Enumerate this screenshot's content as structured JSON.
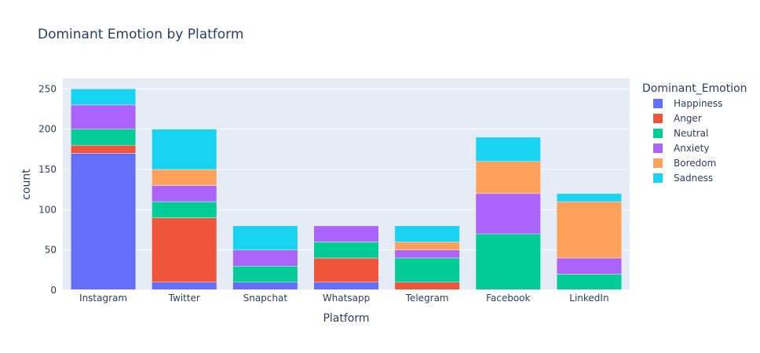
{
  "chart_data": {
    "type": "bar",
    "stacked": true,
    "title": "Dominant Emotion by Platform",
    "xlabel": "Platform",
    "ylabel": "count",
    "categories": [
      "Instagram",
      "Twitter",
      "Snapchat",
      "Whatsapp",
      "Telegram",
      "Facebook",
      "LinkedIn"
    ],
    "ylim": [
      0,
      263
    ],
    "yticks": [
      0,
      50,
      100,
      150,
      200,
      250
    ],
    "legend_title": "Dominant_Emotion",
    "legend_position": "right",
    "grid": true,
    "plot_background": "#e5ecf6",
    "series": [
      {
        "name": "Happiness",
        "color": "#636efa",
        "values": [
          170,
          10,
          10,
          10,
          0,
          0,
          0
        ]
      },
      {
        "name": "Anger",
        "color": "#ef553b",
        "values": [
          10,
          80,
          0,
          30,
          10,
          0,
          0
        ]
      },
      {
        "name": "Neutral",
        "color": "#00cc96",
        "values": [
          20,
          20,
          20,
          20,
          30,
          70,
          20
        ]
      },
      {
        "name": "Anxiety",
        "color": "#ab63fa",
        "values": [
          30,
          20,
          20,
          20,
          10,
          50,
          20
        ]
      },
      {
        "name": "Boredom",
        "color": "#ffa15a",
        "values": [
          0,
          20,
          0,
          0,
          10,
          40,
          70
        ]
      },
      {
        "name": "Sadness",
        "color": "#19d3f3",
        "values": [
          20,
          50,
          30,
          0,
          20,
          30,
          10
        ]
      }
    ]
  }
}
